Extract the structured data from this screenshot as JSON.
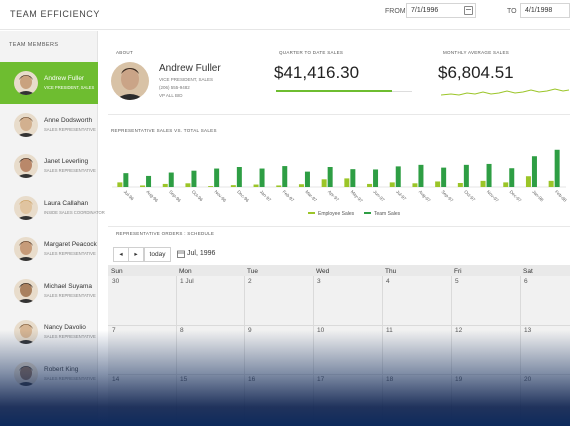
{
  "header": {
    "title": "TEAM EFFICIENCY",
    "from_label": "FROM",
    "from_value": "7/1/1996",
    "to_label": "TO",
    "to_value": "4/1/1998"
  },
  "sidebar": {
    "title": "TEAM MEMBERS",
    "members": [
      {
        "name": "Andrew Fuller",
        "role": "VICE PRESIDENT, SALES",
        "selected": true
      },
      {
        "name": "Anne Dodsworth",
        "role": "SALES REPRESENTATIVE",
        "selected": false
      },
      {
        "name": "Janet Leverling",
        "role": "SALES REPRESENTATIVE",
        "selected": false
      },
      {
        "name": "Laura Callahan",
        "role": "INSIDE SALES COORDINATOR",
        "selected": false
      },
      {
        "name": "Margaret Peacock",
        "role": "SALES REPRESENTATIVE",
        "selected": false
      },
      {
        "name": "Michael Suyama",
        "role": "SALES REPRESENTATIVE",
        "selected": false
      },
      {
        "name": "Nancy Davolio",
        "role": "SALES REPRESENTATIVE",
        "selected": false
      },
      {
        "name": "Robert King",
        "role": "SALES REPRESENTATIVE",
        "selected": false
      }
    ]
  },
  "about": {
    "label": "ABOUT",
    "name": "Andrew Fuller",
    "title": "VICE PRESIDENT, SALES",
    "phone": "(206) 555-9482",
    "extra": "VP ALL BID"
  },
  "kpi": {
    "qtd_label": "QUARTER TO DATE SALES",
    "qtd_value": "$41,416.30",
    "qtd_progress": 0.85,
    "monthly_label": "MONTHLY AVERAGE SALES",
    "monthly_value": "$6,804.51"
  },
  "colors": {
    "employee": "#9bc528",
    "team": "#2e9e44",
    "accent": "#6ebd30"
  },
  "chart_data": {
    "type": "bar",
    "title": "REPRESENTATIVE SALES VS. TOTAL SALES",
    "categories": [
      "Jul-96",
      "Aug-96",
      "Sep-96",
      "Oct-96",
      "Nov-96",
      "Dec-96",
      "Jan-97",
      "Feb-97",
      "Mar-97",
      "Apr-97",
      "May-97",
      "Jun-97",
      "Jul-97",
      "Aug-97",
      "Sep-97",
      "Oct-97",
      "Nov-97",
      "Dec-97",
      "Jan-98",
      "Feb-98"
    ],
    "series": [
      {
        "name": "Employee Sales",
        "values": [
          1.5,
          0.5,
          1.0,
          1.2,
          0.3,
          0.6,
          0.8,
          0.5,
          0.9,
          2.5,
          2.8,
          1.0,
          1.5,
          1.2,
          1.8,
          1.3,
          2.0,
          1.5,
          3.5,
          2.0
        ]
      },
      {
        "name": "Team Sales",
        "values": [
          4.5,
          3.6,
          4.7,
          5.3,
          6.0,
          6.5,
          6.0,
          6.8,
          5.0,
          6.5,
          5.8,
          5.7,
          6.7,
          7.2,
          6.3,
          7.2,
          7.5,
          6.1,
          10.0,
          12.1
        ]
      }
    ],
    "ylim": [
      0,
      13
    ],
    "legend": "bottom"
  },
  "schedule": {
    "label": "REPRESENTATIVE ORDERS : SCHEDULE",
    "today_label": "today",
    "prev_label": "◂",
    "next_label": "▸",
    "current": "Jul, 1996",
    "day_names": [
      "Sun",
      "Mon",
      "Tue",
      "Wed",
      "Thu",
      "Fri",
      "Sat"
    ],
    "weeks": [
      [
        "30",
        "1 Jul",
        "2",
        "3",
        "4",
        "5",
        "6"
      ],
      [
        "7",
        "8",
        "9",
        "10",
        "11",
        "12",
        "13"
      ],
      [
        "14",
        "15",
        "16",
        "17",
        "18",
        "19",
        "20"
      ]
    ]
  }
}
